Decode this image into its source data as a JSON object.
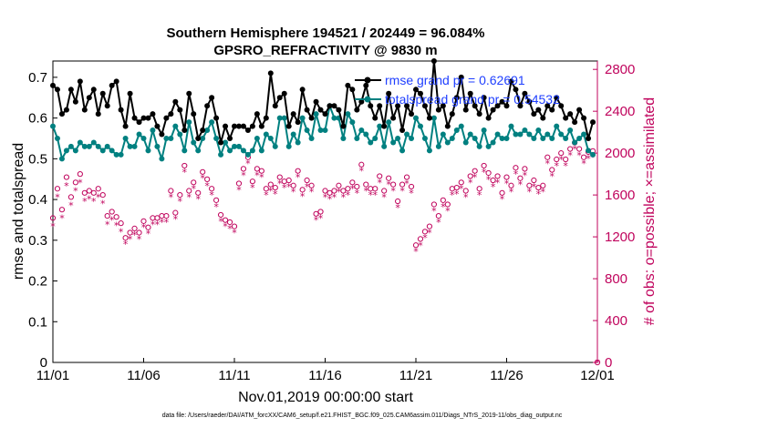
{
  "chart_data": {
    "type": "line",
    "title_line1": "Southern Hemisphere 194521 / 202449 = 96.084%",
    "title_line2": "GPSRO_REFRACTIVITY @ 9830 m",
    "xlabel": "Nov.01,2019 00:00:00 start",
    "ylabel": "rmse and totalspread",
    "ylabel_right": "# of obs: o=possible; ×=assimilated",
    "footer": "data file: /Users/raeder/DAI/ATM_forcXX/CAM6_setup/f.e21.FHIST_BGC.f09_025.CAM6assim.011/Diags_NTrS_2019-11/obs_diag_output.nc",
    "xlim": [
      0,
      30
    ],
    "ylim": [
      0,
      0.74
    ],
    "ylim_right": [
      0,
      2880
    ],
    "x_ticks": [
      0,
      5,
      10,
      15,
      20,
      25,
      30
    ],
    "x_tick_labels": [
      "11/01",
      "11/06",
      "11/11",
      "11/16",
      "11/21",
      "11/26",
      "12/01"
    ],
    "y_ticks": [
      0,
      0.1,
      0.2,
      0.3,
      0.4,
      0.5,
      0.6,
      0.7
    ],
    "y_tick_labels": [
      "0",
      "0.1",
      "0.2",
      "0.3",
      "0.4",
      "0.5",
      "0.6",
      "0.7"
    ],
    "y_ticks_right": [
      0,
      400,
      800,
      1200,
      1600,
      2000,
      2400,
      2800
    ],
    "y_tick_labels_right": [
      "0",
      "400",
      "800",
      "1200",
      "1600",
      "2000",
      "2400",
      "2800"
    ],
    "legend": [
      {
        "label": "rmse grand pr = 0.62691",
        "color": "#000000"
      },
      {
        "label": "totalspread grand pr = 0.54532",
        "color": "#008080"
      }
    ],
    "colors": {
      "rmse": "#000000",
      "spread": "#008080",
      "obs": "#c0045d",
      "legend_text": "#1f3fff"
    },
    "x": [
      0,
      0.25,
      0.5,
      0.75,
      1,
      1.25,
      1.5,
      1.75,
      2,
      2.25,
      2.5,
      2.75,
      3,
      3.25,
      3.5,
      3.75,
      4,
      4.25,
      4.5,
      4.75,
      5,
      5.25,
      5.5,
      5.75,
      6,
      6.25,
      6.5,
      6.75,
      7,
      7.25,
      7.5,
      7.75,
      8,
      8.25,
      8.5,
      8.75,
      9,
      9.25,
      9.5,
      9.75,
      10,
      10.25,
      10.5,
      10.75,
      11,
      11.25,
      11.5,
      11.75,
      12,
      12.25,
      12.5,
      12.75,
      13,
      13.25,
      13.5,
      13.75,
      14,
      14.25,
      14.5,
      14.75,
      15,
      15.25,
      15.5,
      15.75,
      16,
      16.25,
      16.5,
      16.75,
      17,
      17.25,
      17.5,
      17.75,
      18,
      18.25,
      18.5,
      18.75,
      19,
      19.25,
      19.5,
      19.75,
      20,
      20.25,
      20.5,
      20.75,
      21,
      21.25,
      21.5,
      21.75,
      22,
      22.25,
      22.5,
      22.75,
      23,
      23.25,
      23.5,
      23.75,
      24,
      24.25,
      24.5,
      24.75,
      25,
      25.25,
      25.5,
      25.75,
      26,
      26.25,
      26.5,
      26.75,
      27,
      27.25,
      27.5,
      27.75,
      28,
      28.25,
      28.5,
      28.75,
      29,
      29.25,
      29.5,
      29.75
    ],
    "series": [
      {
        "name": "rmse",
        "values": [
          0.68,
          0.67,
          0.61,
          0.62,
          0.67,
          0.64,
          0.69,
          0.62,
          0.65,
          0.67,
          0.61,
          0.66,
          0.63,
          0.68,
          0.69,
          0.62,
          0.58,
          0.66,
          0.6,
          0.59,
          0.6,
          0.6,
          0.61,
          0.58,
          0.56,
          0.6,
          0.61,
          0.64,
          0.62,
          0.57,
          0.66,
          0.61,
          0.55,
          0.57,
          0.63,
          0.65,
          0.6,
          0.54,
          0.58,
          0.55,
          0.58,
          0.58,
          0.58,
          0.57,
          0.58,
          0.61,
          0.58,
          0.6,
          0.71,
          0.63,
          0.65,
          0.66,
          0.58,
          0.61,
          0.59,
          0.67,
          0.62,
          0.6,
          0.64,
          0.62,
          0.61,
          0.63,
          0.63,
          0.62,
          0.58,
          0.68,
          0.67,
          0.62,
          0.64,
          0.68,
          0.63,
          0.6,
          0.63,
          0.58,
          0.66,
          0.6,
          0.63,
          0.57,
          0.63,
          0.61,
          0.67,
          0.66,
          0.63,
          0.6,
          0.74,
          0.62,
          0.63,
          0.58,
          0.61,
          0.65,
          0.7,
          0.62,
          0.66,
          0.63,
          0.61,
          0.65,
          0.6,
          0.62,
          0.63,
          0.64,
          0.63,
          0.69,
          0.67,
          0.63,
          0.66,
          0.64,
          0.61,
          0.62,
          0.6,
          0.63,
          0.62,
          0.65,
          0.63,
          0.6,
          0.61,
          0.59,
          0.62,
          0.6,
          0.55,
          0.59
        ]
      },
      {
        "name": "totalspread",
        "values": [
          0.58,
          0.55,
          0.5,
          0.52,
          0.53,
          0.52,
          0.54,
          0.53,
          0.53,
          0.54,
          0.53,
          0.52,
          0.53,
          0.52,
          0.51,
          0.51,
          0.55,
          0.53,
          0.53,
          0.56,
          0.55,
          0.52,
          0.57,
          0.53,
          0.5,
          0.55,
          0.55,
          0.58,
          0.56,
          0.52,
          0.59,
          0.54,
          0.52,
          0.55,
          0.57,
          0.59,
          0.55,
          0.51,
          0.54,
          0.52,
          0.53,
          0.53,
          0.52,
          0.51,
          0.52,
          0.55,
          0.52,
          0.56,
          0.55,
          0.53,
          0.6,
          0.6,
          0.53,
          0.56,
          0.54,
          0.6,
          0.57,
          0.55,
          0.61,
          0.57,
          0.57,
          0.63,
          0.6,
          0.6,
          0.55,
          0.61,
          0.59,
          0.55,
          0.57,
          0.56,
          0.54,
          0.55,
          0.58,
          0.53,
          0.59,
          0.54,
          0.55,
          0.52,
          0.56,
          0.55,
          0.6,
          0.58,
          0.55,
          0.52,
          0.6,
          0.53,
          0.56,
          0.54,
          0.55,
          0.57,
          0.58,
          0.54,
          0.56,
          0.55,
          0.53,
          0.57,
          0.53,
          0.54,
          0.56,
          0.55,
          0.55,
          0.58,
          0.56,
          0.56,
          0.57,
          0.56,
          0.55,
          0.57,
          0.55,
          0.56,
          0.55,
          0.58,
          0.56,
          0.55,
          0.57,
          0.54,
          0.55,
          0.56,
          0.52,
          0.51
        ]
      },
      {
        "name": "obs_possible",
        "values": [
          1380,
          1660,
          1460,
          1770,
          1580,
          1720,
          1800,
          1620,
          1640,
          1620,
          1660,
          1600,
          1400,
          1440,
          1390,
          1330,
          1190,
          1240,
          1280,
          1240,
          1350,
          1290,
          1380,
          1380,
          1400,
          1400,
          1640,
          1430,
          1600,
          1880,
          1640,
          1720,
          1620,
          1820,
          1750,
          1660,
          1550,
          1410,
          1360,
          1340,
          1300,
          1710,
          1850,
          1960,
          1730,
          1850,
          1830,
          1660,
          1700,
          1670,
          1770,
          1730,
          1740,
          1690,
          1830,
          1650,
          1740,
          1690,
          1420,
          1440,
          1640,
          1620,
          1640,
          1690,
          1640,
          1660,
          1720,
          1680,
          1890,
          1700,
          1660,
          1660,
          1780,
          1640,
          1760,
          1700,
          1540,
          1700,
          1770,
          1680,
          1120,
          1180,
          1250,
          1300,
          1510,
          1400,
          1550,
          1510,
          1660,
          1670,
          1720,
          1640,
          1780,
          1830,
          1660,
          1880,
          1810,
          1740,
          1780,
          1620,
          1770,
          1690,
          1860,
          1760,
          1850,
          1690,
          1740,
          1670,
          1690,
          1960,
          1840,
          1940,
          2000,
          1940,
          2040,
          2100,
          2040,
          1960,
          2010,
          2020
        ]
      },
      {
        "name": "obs_assimilated",
        "values": [
          1300,
          1580,
          1380,
          1690,
          1500,
          1640,
          1720,
          1540,
          1560,
          1540,
          1580,
          1520,
          1320,
          1360,
          1310,
          1250,
          1130,
          1180,
          1220,
          1180,
          1290,
          1230,
          1320,
          1320,
          1340,
          1340,
          1580,
          1370,
          1540,
          1820,
          1580,
          1660,
          1560,
          1760,
          1690,
          1600,
          1490,
          1350,
          1300,
          1280,
          1240,
          1650,
          1790,
          1900,
          1670,
          1790,
          1770,
          1600,
          1640,
          1610,
          1710,
          1670,
          1680,
          1630,
          1770,
          1590,
          1680,
          1630,
          1360,
          1380,
          1580,
          1560,
          1580,
          1630,
          1580,
          1600,
          1660,
          1620,
          1830,
          1640,
          1600,
          1600,
          1720,
          1580,
          1700,
          1640,
          1480,
          1640,
          1710,
          1620,
          1060,
          1120,
          1190,
          1240,
          1450,
          1340,
          1490,
          1450,
          1600,
          1610,
          1660,
          1580,
          1720,
          1770,
          1600,
          1820,
          1750,
          1680,
          1720,
          1560,
          1710,
          1630,
          1800,
          1700,
          1790,
          1630,
          1680,
          1610,
          1630,
          1900,
          1780,
          1880,
          1940,
          1880,
          1980,
          2040,
          1980,
          1900,
          1950,
          1960
        ]
      }
    ]
  }
}
